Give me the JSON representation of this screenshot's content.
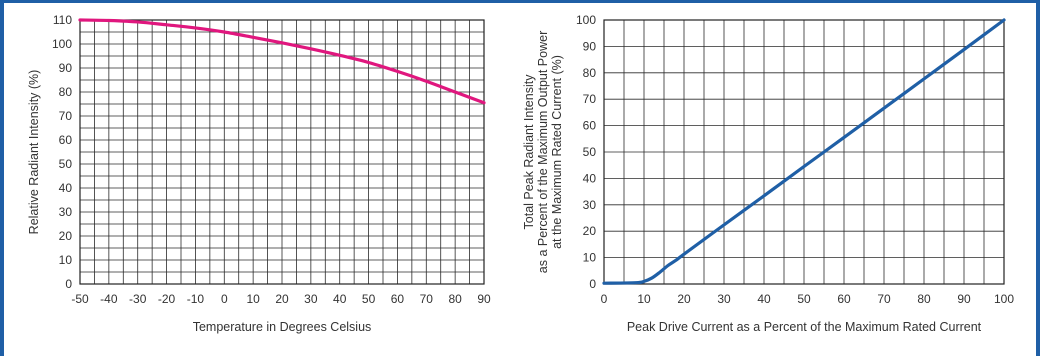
{
  "chart_data": [
    {
      "type": "line",
      "xlabel": "Temperature in Degrees Celsius",
      "ylabel": "Relative Radiant Intensity (%)",
      "xlim": [
        -50,
        90
      ],
      "ylim": [
        0,
        110
      ],
      "xticks": [
        -50,
        -40,
        -30,
        -20,
        -10,
        0,
        10,
        20,
        30,
        40,
        50,
        60,
        70,
        80,
        90
      ],
      "yticks": [
        0,
        10,
        20,
        30,
        40,
        50,
        60,
        70,
        80,
        90,
        100,
        110
      ],
      "x_minor_step": 5,
      "y_minor_step": 5,
      "grid": true,
      "series": [
        {
          "color": "#e0177e",
          "x": [
            -50,
            -40,
            -30,
            -20,
            -10,
            0,
            10,
            20,
            30,
            40,
            50,
            60,
            70,
            80,
            90
          ],
          "y": [
            110,
            109.8,
            109.2,
            108,
            106.7,
            105,
            102.8,
            100.5,
            98,
            95.3,
            92.3,
            88.6,
            84.5,
            80,
            75.5
          ]
        }
      ]
    },
    {
      "type": "line",
      "xlabel": "Peak Drive Current as a Percent of the Maximum Rated Current",
      "ylabel": [
        "Total Peak Radiant Intensity",
        "as a Percent of the Maximum Output Power",
        "at the Maximum Rated Current (%)"
      ],
      "xlim": [
        0,
        100
      ],
      "ylim": [
        0,
        100
      ],
      "xticks": [
        0,
        10,
        20,
        30,
        40,
        50,
        60,
        70,
        80,
        90,
        100
      ],
      "yticks": [
        0,
        10,
        20,
        30,
        40,
        50,
        60,
        70,
        80,
        90,
        100
      ],
      "x_minor_step": 5,
      "y_minor_step": 10,
      "grid": true,
      "series": [
        {
          "color": "#1f5fa6",
          "x": [
            0,
            8,
            10,
            12,
            14,
            16,
            18,
            20,
            30,
            40,
            50,
            60,
            70,
            80,
            90,
            100
          ],
          "y": [
            0.3,
            0.5,
            1,
            2.3,
            4.5,
            7,
            9,
            11.3,
            22.4,
            33.4,
            44.5,
            55.5,
            66.6,
            77.7,
            88.8,
            100
          ]
        }
      ]
    }
  ]
}
